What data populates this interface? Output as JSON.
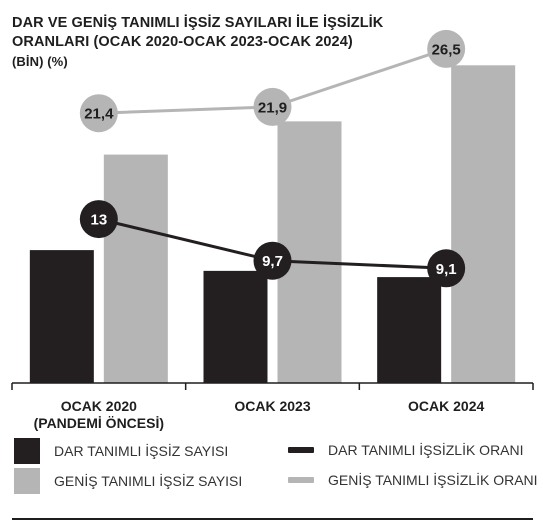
{
  "title": {
    "line1": "DAR VE GENİŞ TANIMLI İŞSİZ SAYILARI İLE İŞSİZLİK",
    "line2": "ORANLARI (OCAK 2020-OCAK 2023-OCAK 2024)",
    "units": "(BİN) (%)"
  },
  "colors": {
    "dark": "#231f20",
    "gray": "#b5b5b5",
    "axis": "#1e1e1e"
  },
  "chart_data": {
    "type": "bar",
    "categories": [
      [
        "OCAK 2020",
        "(PANDEMİ ÖNCESİ)"
      ],
      [
        "OCAK 2023"
      ],
      [
        "OCAK 2024"
      ]
    ],
    "series": [
      {
        "name": "DAR TANIMLI İŞSİZ SAYISI",
        "kind": "bar",
        "color": "#231f20",
        "values": [
          3200,
          2700,
          2550
        ]
      },
      {
        "name": "GENİŞ TANIMLI İŞSİZ SAYISI",
        "kind": "bar",
        "color": "#b5b5b5",
        "values": [
          5500,
          6300,
          7650
        ]
      },
      {
        "name": "DAR TANIMLI İŞSİZLİK ORANI",
        "kind": "line",
        "color": "#231f20",
        "values": [
          13,
          9.7,
          9.1
        ],
        "labels": [
          "13",
          "9,7",
          "9,1"
        ]
      },
      {
        "name": "GENİŞ TANIMLI İŞSİZLİK ORANI",
        "kind": "line",
        "color": "#b5b5b5",
        "values": [
          21.4,
          21.9,
          26.5
        ],
        "labels": [
          "21,4",
          "21,9",
          "26,5"
        ]
      }
    ],
    "bar_ylim": [
      0,
      8500
    ],
    "rate_ylim": [
      0,
      28
    ],
    "grid": false,
    "legend_position": "bottom"
  },
  "legend": [
    {
      "label": "DAR TANIMLI İŞSİZ SAYISI",
      "shape": "box",
      "color": "#231f20"
    },
    {
      "label": "DAR TANIMLI İŞSİZLİK ORANI",
      "shape": "line",
      "color": "#231f20"
    },
    {
      "label": "GENİŞ TANIMLI İŞSİZ SAYISI",
      "shape": "box",
      "color": "#b5b5b5"
    },
    {
      "label": "GENİŞ TANIMLI İŞSİZLİK ORANI",
      "shape": "line",
      "color": "#b5b5b5"
    }
  ]
}
